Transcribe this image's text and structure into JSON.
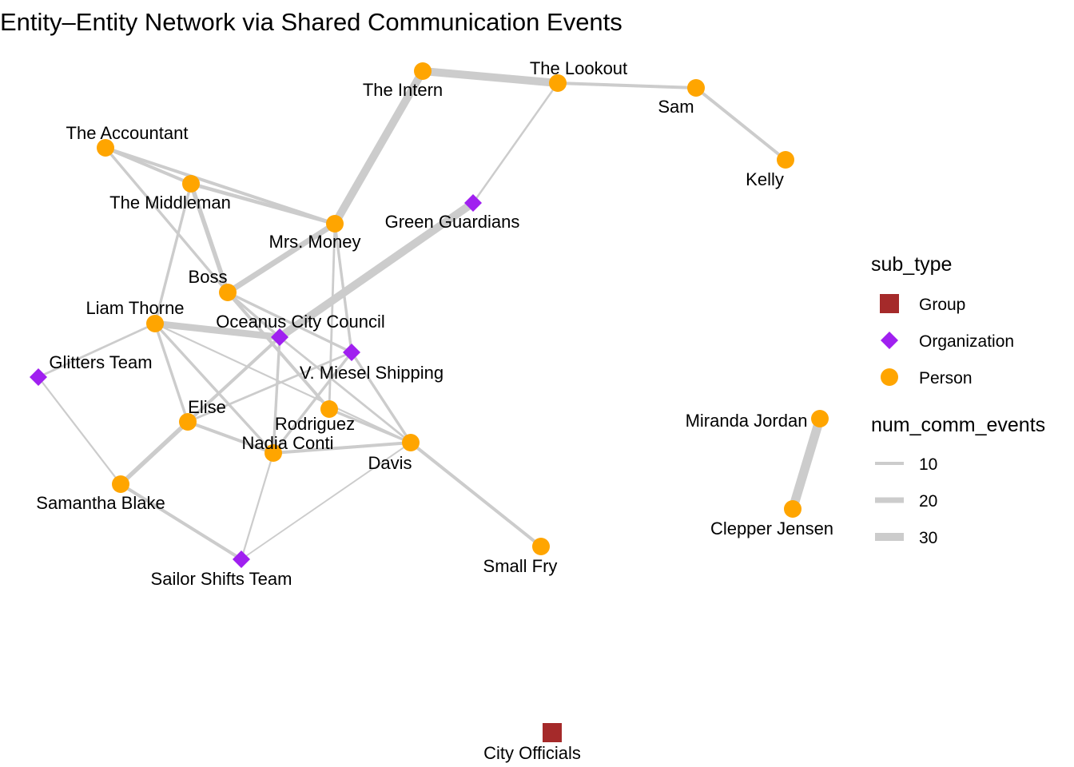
{
  "title": "Entity–Entity Network via Shared Communication Events",
  "colors": {
    "Group": "#a52a2a",
    "Organization": "#a020f0",
    "Person": "#ffa500",
    "edge": "#cccccc"
  },
  "nodes": [
    {
      "id": "the-intern",
      "label": "The Intern",
      "type": "Person"
    },
    {
      "id": "the-lookout",
      "label": "The Lookout",
      "type": "Person"
    },
    {
      "id": "sam",
      "label": "Sam",
      "type": "Person"
    },
    {
      "id": "kelly",
      "label": "Kelly",
      "type": "Person"
    },
    {
      "id": "the-accountant",
      "label": "The Accountant",
      "type": "Person"
    },
    {
      "id": "the-middleman",
      "label": "The Middleman",
      "type": "Person"
    },
    {
      "id": "mrs-money",
      "label": "Mrs. Money",
      "type": "Person"
    },
    {
      "id": "green-guardians",
      "label": "Green Guardians",
      "type": "Organization"
    },
    {
      "id": "boss",
      "label": "Boss",
      "type": "Person"
    },
    {
      "id": "liam-thorne",
      "label": "Liam Thorne",
      "type": "Person"
    },
    {
      "id": "oceanus-city-council",
      "label": "Oceanus City Council",
      "type": "Organization"
    },
    {
      "id": "v-miesel-shipping",
      "label": "V. Miesel Shipping",
      "type": "Organization"
    },
    {
      "id": "glitters-team",
      "label": "Glitters Team",
      "type": "Organization"
    },
    {
      "id": "elise",
      "label": "Elise",
      "type": "Person"
    },
    {
      "id": "rodriguez",
      "label": "Rodriguez",
      "type": "Person"
    },
    {
      "id": "nadia-conti",
      "label": "Nadia Conti",
      "type": "Person"
    },
    {
      "id": "davis",
      "label": "Davis",
      "type": "Person"
    },
    {
      "id": "samantha-blake",
      "label": "Samantha Blake",
      "type": "Person"
    },
    {
      "id": "sailor-shifts-team",
      "label": "Sailor Shifts Team",
      "type": "Organization"
    },
    {
      "id": "small-fry",
      "label": "Small Fry",
      "type": "Person"
    },
    {
      "id": "miranda-jordan",
      "label": "Miranda Jordan",
      "type": "Person"
    },
    {
      "id": "clepper-jensen",
      "label": "Clepper Jensen",
      "type": "Person"
    },
    {
      "id": "city-officials",
      "label": "City Officials",
      "type": "Group"
    }
  ],
  "edges": [
    {
      "source": "the-intern",
      "target": "the-lookout",
      "num_comm_events": 30
    },
    {
      "source": "the-intern",
      "target": "mrs-money",
      "num_comm_events": 30
    },
    {
      "source": "the-lookout",
      "target": "sam",
      "num_comm_events": 10
    },
    {
      "source": "the-lookout",
      "target": "green-guardians",
      "num_comm_events": 5
    },
    {
      "source": "sam",
      "target": "kelly",
      "num_comm_events": 10
    },
    {
      "source": "the-accountant",
      "target": "the-middleman",
      "num_comm_events": 10
    },
    {
      "source": "the-accountant",
      "target": "mrs-money",
      "num_comm_events": 10
    },
    {
      "source": "the-accountant",
      "target": "boss",
      "num_comm_events": 8
    },
    {
      "source": "the-middleman",
      "target": "mrs-money",
      "num_comm_events": 12
    },
    {
      "source": "the-middleman",
      "target": "boss",
      "num_comm_events": 15
    },
    {
      "source": "the-middleman",
      "target": "liam-thorne",
      "num_comm_events": 8
    },
    {
      "source": "boss",
      "target": "mrs-money",
      "num_comm_events": 20
    },
    {
      "source": "boss",
      "target": "v-miesel-shipping",
      "num_comm_events": 8
    },
    {
      "source": "boss",
      "target": "rodriguez",
      "num_comm_events": 10
    },
    {
      "source": "boss",
      "target": "oceanus-city-council",
      "num_comm_events": 8
    },
    {
      "source": "mrs-money",
      "target": "v-miesel-shipping",
      "num_comm_events": 8
    },
    {
      "source": "mrs-money",
      "target": "rodriguez",
      "num_comm_events": 6
    },
    {
      "source": "green-guardians",
      "target": "oceanus-city-council",
      "num_comm_events": 30
    },
    {
      "source": "liam-thorne",
      "target": "oceanus-city-council",
      "num_comm_events": 25
    },
    {
      "source": "liam-thorne",
      "target": "glitters-team",
      "num_comm_events": 6
    },
    {
      "source": "liam-thorne",
      "target": "elise",
      "num_comm_events": 8
    },
    {
      "source": "liam-thorne",
      "target": "nadia-conti",
      "num_comm_events": 8
    },
    {
      "source": "liam-thorne",
      "target": "davis",
      "num_comm_events": 4
    },
    {
      "source": "oceanus-city-council",
      "target": "elise",
      "num_comm_events": 10
    },
    {
      "source": "oceanus-city-council",
      "target": "nadia-conti",
      "num_comm_events": 8
    },
    {
      "source": "oceanus-city-council",
      "target": "davis",
      "num_comm_events": 6
    },
    {
      "source": "v-miesel-shipping",
      "target": "elise",
      "num_comm_events": 6
    },
    {
      "source": "v-miesel-shipping",
      "target": "nadia-conti",
      "num_comm_events": 8
    },
    {
      "source": "v-miesel-shipping",
      "target": "davis",
      "num_comm_events": 8
    },
    {
      "source": "glitters-team",
      "target": "samantha-blake",
      "num_comm_events": 4
    },
    {
      "source": "elise",
      "target": "samantha-blake",
      "num_comm_events": 15
    },
    {
      "source": "elise",
      "target": "nadia-conti",
      "num_comm_events": 10
    },
    {
      "source": "rodriguez",
      "target": "davis",
      "num_comm_events": 8
    },
    {
      "source": "nadia-conti",
      "target": "davis",
      "num_comm_events": 10
    },
    {
      "source": "nadia-conti",
      "target": "sailor-shifts-team",
      "num_comm_events": 4
    },
    {
      "source": "davis",
      "target": "small-fry",
      "num_comm_events": 10
    },
    {
      "source": "davis",
      "target": "sailor-shifts-team",
      "num_comm_events": 3
    },
    {
      "source": "samantha-blake",
      "target": "sailor-shifts-team",
      "num_comm_events": 10
    },
    {
      "source": "miranda-jordan",
      "target": "clepper-jensen",
      "num_comm_events": 35
    }
  ],
  "legend": {
    "sub_type_title": "sub_type",
    "sub_types": [
      "Group",
      "Organization",
      "Person"
    ],
    "weight_title": "num_comm_events",
    "weights": [
      10,
      20,
      30
    ]
  }
}
